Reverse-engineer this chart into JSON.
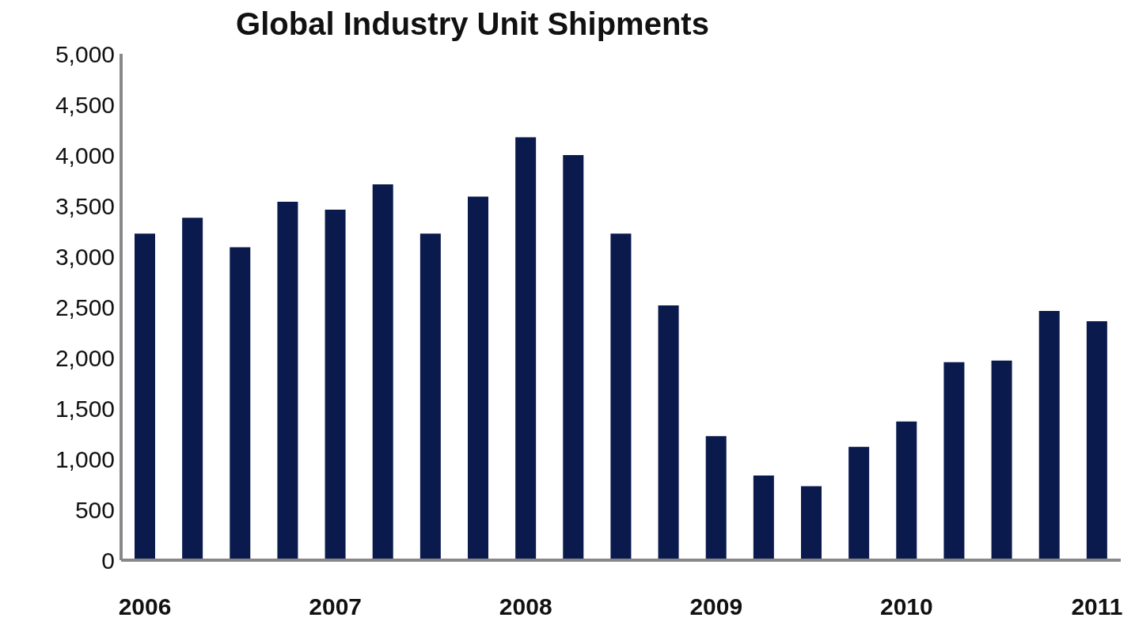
{
  "chart_data": {
    "type": "bar",
    "title": "Global Industry Unit Shipments",
    "categories": [
      "2006",
      null,
      null,
      null,
      "2007",
      null,
      null,
      null,
      "2008",
      null,
      null,
      null,
      "2009",
      null,
      null,
      null,
      "2010",
      null,
      null,
      null,
      "2011"
    ],
    "values": [
      3225,
      3380,
      3090,
      3540,
      3460,
      3710,
      3225,
      3590,
      4175,
      4000,
      3225,
      2515,
      1225,
      835,
      730,
      1120,
      1370,
      1955,
      1970,
      2460,
      2360
    ],
    "color": "#0b1a4d",
    "ylim": [
      0,
      5000
    ],
    "yticks": [
      0,
      500,
      {
        "value": 1000,
        "label": "1,000"
      },
      {
        "value": 1500,
        "label": "1,500"
      },
      {
        "value": 2000,
        "label": "2,000"
      },
      {
        "value": 2500,
        "label": "2,500"
      },
      {
        "value": 3000,
        "label": "3,000"
      },
      {
        "value": 3500,
        "label": "3,500"
      },
      {
        "value": 4000,
        "label": "4,000"
      },
      {
        "value": 4500,
        "label": "4,500"
      },
      {
        "value": 5000,
        "label": "5,000"
      }
    ],
    "grid": false,
    "legend": false
  }
}
